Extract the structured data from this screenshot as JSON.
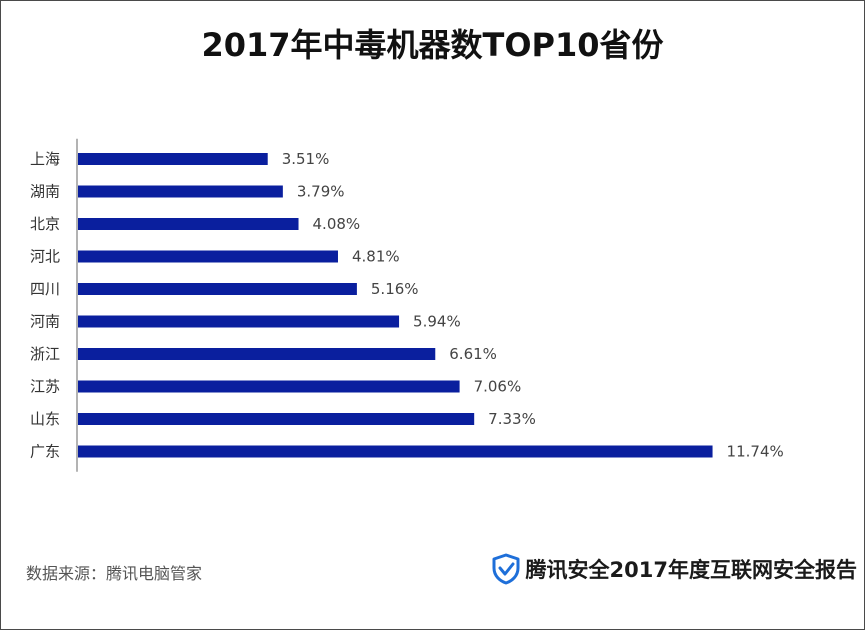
{
  "chart_data": {
    "type": "bar",
    "orientation": "horizontal",
    "title": "2017年中毒机器数TOP10省份",
    "categories": [
      "上海",
      "湖南",
      "北京",
      "河北",
      "四川",
      "河南",
      "浙江",
      "江苏",
      "山东",
      "广东"
    ],
    "values": [
      3.51,
      3.79,
      4.08,
      4.81,
      5.16,
      5.94,
      6.61,
      7.06,
      7.33,
      11.74
    ],
    "value_labels": [
      "3.51%",
      "3.79%",
      "4.08%",
      "4.81%",
      "5.16%",
      "5.94%",
      "6.61%",
      "7.06%",
      "7.33%",
      "11.74%"
    ],
    "xlim": [
      0,
      12
    ],
    "bar_color": "#0A1F9E",
    "grid": false,
    "legend": "none"
  },
  "footer": {
    "source": "数据来源：腾讯电脑管家",
    "brand": "腾讯安全2017年度互联网安全报告"
  },
  "colors": {
    "brand_icon": "#1E6FD9",
    "frame": "#4a4a4a"
  },
  "icons": {
    "brand": "shield-check-icon"
  }
}
